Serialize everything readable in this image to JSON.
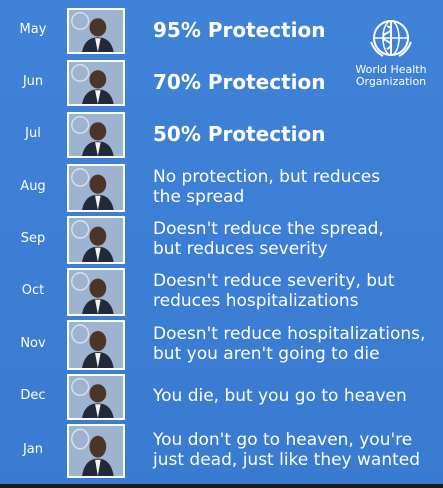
{
  "logo": {
    "org_name": "World Health\nOrganization",
    "icon": "who-emblem-icon"
  },
  "rows": [
    {
      "month": "May",
      "caption": "95% Protection",
      "big": true
    },
    {
      "month": "Jun",
      "caption": "70% Protection",
      "big": true
    },
    {
      "month": "Jul",
      "caption": "50% Protection",
      "big": true
    },
    {
      "month": "Aug",
      "caption": "No protection, but reduces\nthe spread",
      "big": false
    },
    {
      "month": "Sep",
      "caption": "Doesn't reduce the spread,\nbut reduces severity",
      "big": false
    },
    {
      "month": "Oct",
      "caption": "Doesn't reduce severity, but\nreduces hospitalizations",
      "big": false
    },
    {
      "month": "Nov",
      "caption": "Doesn't reduce hospitalizations,\nbut you aren't going to die",
      "big": false
    },
    {
      "month": "Dec",
      "caption": "You die, but you go to heaven",
      "big": false
    },
    {
      "month": "Jan",
      "caption": "You don't go to heaven, you're\njust dead, just like they wanted",
      "big": false
    }
  ],
  "colors": {
    "background": "#3d7fd6",
    "text": "#ffffff"
  }
}
